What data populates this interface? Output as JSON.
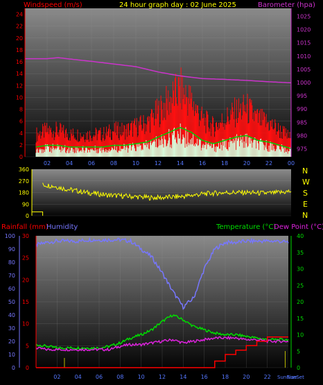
{
  "header": {
    "title": "24 hour graph day : 02 June 2025",
    "left_label": "Windspeed (m/s)",
    "right_label": "Barometer (hpa)"
  },
  "direction_panel": {
    "compass": [
      "N",
      "W",
      "S",
      "E",
      "N"
    ]
  },
  "bottom_header": {
    "rainfall_label": "Rainfall (mm)",
    "humidity_label": "Humidity",
    "temperature_label": "Temperature (°C)",
    "dewpoint_label": "Dew Point (°C)"
  },
  "colors": {
    "title": "#ffff00",
    "windspeed": "#ff0000",
    "barometer": "#cc33cc",
    "humidity": "#7777ff",
    "temperature": "#00dd00",
    "dewpoint": "#dd22dd",
    "rainfall": "#ff0000",
    "direction": "#ffff00"
  },
  "chart_data": [
    {
      "type": "line",
      "name": "wind-barometer",
      "x_ticks": [
        "02",
        "04",
        "06",
        "08",
        "10",
        "12",
        "14",
        "16",
        "18",
        "20",
        "22",
        "00"
      ],
      "left_axis_ticks": [
        "0",
        "2",
        "4",
        "6",
        "8",
        "10",
        "12",
        "14",
        "16",
        "18",
        "20",
        "22",
        "24"
      ],
      "right_axis_ticks": [
        "975",
        "980",
        "985",
        "990",
        "995",
        "1000",
        "1005",
        "1010",
        "1015",
        "1020",
        "1025"
      ],
      "ylim_left": [
        0,
        25
      ],
      "ylim_right": [
        972,
        1028
      ],
      "series": [
        {
          "name": "Windspeed",
          "axis": "left",
          "color": "#ff0000",
          "x": [
            0,
            1,
            2,
            3,
            4,
            5,
            6,
            7,
            8,
            9,
            10,
            11,
            12,
            13,
            14,
            15,
            16,
            17,
            18,
            19,
            20,
            21,
            22,
            23,
            24
          ],
          "values": [
            2.5,
            3.0,
            3.5,
            3.5,
            3.0,
            3.0,
            3.0,
            3.0,
            3.5,
            3.5,
            4.0,
            4.5,
            6.0,
            7.5,
            9.0,
            7.5,
            5.0,
            4.0,
            5.0,
            6.0,
            6.5,
            5.0,
            4.5,
            3.5,
            2.5
          ]
        },
        {
          "name": "Barometer",
          "axis": "right",
          "color": "#cc33cc",
          "x": [
            0,
            2,
            3,
            4,
            6,
            8,
            10,
            12,
            14,
            16,
            18,
            20,
            22,
            24
          ],
          "values": [
            1009.0,
            1009.0,
            1009.4,
            1008.9,
            1008.0,
            1007.0,
            1006.0,
            1004.0,
            1002.5,
            1001.5,
            1001.2,
            1000.8,
            1000.3,
            999.9
          ]
        }
      ]
    },
    {
      "type": "scatter",
      "name": "wind-direction",
      "y_ticks": [
        "360",
        "270",
        "180",
        "90",
        "0"
      ],
      "ylim": [
        0,
        360
      ],
      "series": [
        {
          "name": "Direction",
          "color": "#ffff00",
          "x": [
            0,
            1,
            2,
            3,
            4,
            5,
            6,
            7,
            8,
            9,
            10,
            11,
            12,
            13,
            14,
            15,
            16,
            17,
            18,
            19,
            20,
            21,
            22,
            23,
            24
          ],
          "values": [
            230,
            240,
            230,
            210,
            195,
            180,
            170,
            160,
            155,
            150,
            145,
            140,
            140,
            145,
            150,
            160,
            170,
            175,
            180,
            180,
            180,
            175,
            175,
            180,
            190
          ]
        }
      ]
    },
    {
      "type": "line",
      "name": "temperature-humidity",
      "x_ticks": [
        "02",
        "04",
        "06",
        "08",
        "10",
        "12",
        "14",
        "16",
        "18",
        "20",
        "22"
      ],
      "x_end_labels": [
        "SunRise",
        "SunSet"
      ],
      "humidity_ticks": [
        "0",
        "10",
        "20",
        "30",
        "40",
        "50",
        "60",
        "70",
        "80",
        "90",
        "100"
      ],
      "rain_ticks": [
        "0",
        "5",
        "10",
        "15",
        "20",
        "25",
        "30"
      ],
      "temp_ticks": [
        "0",
        "5",
        "10",
        "15",
        "20",
        "25",
        "30",
        "35",
        "40"
      ],
      "ylim_humidity": [
        0,
        100
      ],
      "ylim_rain": [
        0,
        30
      ],
      "ylim_temp": [
        0,
        40
      ],
      "series": [
        {
          "name": "Humidity",
          "axis": "humidity",
          "color": "#7777ff",
          "x": [
            0,
            1,
            2,
            3,
            4,
            5,
            6,
            7,
            8,
            9,
            10,
            11,
            12,
            13,
            14,
            15,
            16,
            17,
            18,
            19,
            20,
            21,
            22,
            23,
            24
          ],
          "values": [
            93,
            95,
            96,
            96,
            96,
            97,
            97,
            97,
            97,
            96,
            90,
            84,
            72,
            58,
            46,
            53,
            75,
            90,
            95,
            95,
            96,
            96,
            96,
            96,
            95
          ]
        },
        {
          "name": "Temperature",
          "axis": "temp",
          "color": "#00dd00",
          "x": [
            0,
            1,
            2,
            3,
            4,
            5,
            6,
            7,
            8,
            9,
            10,
            11,
            12,
            13,
            14,
            15,
            16,
            17,
            18,
            19,
            20,
            21,
            22,
            23,
            24
          ],
          "values": [
            7.0,
            6.5,
            6.0,
            6.0,
            6.0,
            6.0,
            6.0,
            6.5,
            7.5,
            9.0,
            10.0,
            11.5,
            14.0,
            16.0,
            14.5,
            12.5,
            11.5,
            10.5,
            10.0,
            10.0,
            9.5,
            9.0,
            8.5,
            8.5,
            8.5
          ]
        },
        {
          "name": "Dew Point",
          "axis": "temp",
          "color": "#dd22dd",
          "x": [
            0,
            1,
            2,
            3,
            4,
            5,
            6,
            7,
            8,
            9,
            10,
            11,
            12,
            13,
            14,
            15,
            16,
            17,
            18,
            19,
            20,
            21,
            22,
            23,
            24
          ],
          "values": [
            6.0,
            5.5,
            5.5,
            5.5,
            5.5,
            5.5,
            5.5,
            5.5,
            6.5,
            7.0,
            7.0,
            7.5,
            8.0,
            8.5,
            7.5,
            8.0,
            8.5,
            9.0,
            9.0,
            9.0,
            8.5,
            8.5,
            8.0,
            8.0,
            8.0
          ]
        },
        {
          "name": "Rainfall",
          "axis": "rain",
          "color": "#ff0000",
          "x": [
            0,
            2,
            4,
            6,
            8,
            10,
            12,
            14,
            16,
            17,
            18,
            19,
            20,
            21,
            22,
            23,
            24
          ],
          "values": [
            0,
            0,
            0,
            0,
            0,
            0,
            0,
            0,
            0,
            1.5,
            3,
            4,
            5,
            6,
            7,
            7,
            7
          ]
        }
      ]
    }
  ]
}
